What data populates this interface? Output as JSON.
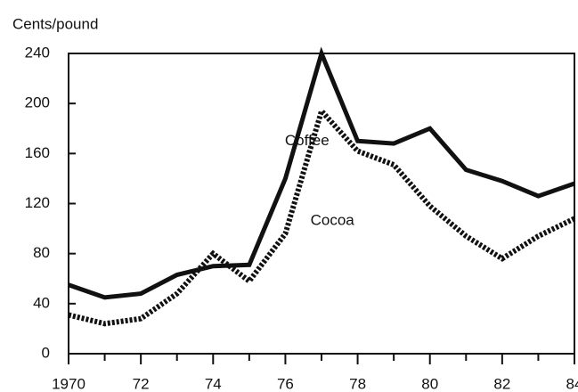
{
  "chart_data": {
    "type": "line",
    "y_axis_label": "Cents/pound",
    "x": [
      1970,
      1971,
      1972,
      1973,
      1974,
      1975,
      1976,
      1977,
      1978,
      1979,
      1980,
      1981,
      1982,
      1983,
      1984
    ],
    "series": [
      {
        "name": "Coffee",
        "color": "#111111",
        "style": "solid",
        "values": [
          55,
          45,
          48,
          63,
          70,
          71,
          140,
          240,
          170,
          168,
          180,
          147,
          138,
          126,
          136
        ]
      },
      {
        "name": "Cocoa",
        "color": "#111111",
        "style": "dotted",
        "values": [
          31,
          24,
          28,
          48,
          80,
          58,
          96,
          194,
          162,
          151,
          118,
          94,
          76,
          94,
          108
        ]
      }
    ],
    "xlim": [
      1970,
      1984
    ],
    "xticks": [
      {
        "value": 1970,
        "label": "1970"
      },
      {
        "value": 1972,
        "label": "72"
      },
      {
        "value": 1974,
        "label": "74"
      },
      {
        "value": 1976,
        "label": "76"
      },
      {
        "value": 1978,
        "label": "78"
      },
      {
        "value": 1980,
        "label": "80"
      },
      {
        "value": 1982,
        "label": "82"
      },
      {
        "value": 1984,
        "label": "84"
      }
    ],
    "xminorticks": [
      1971,
      1973,
      1975,
      1977,
      1979,
      1981,
      1983
    ],
    "ylim": [
      0,
      240
    ],
    "yticks": [
      0,
      40,
      80,
      120,
      160,
      200,
      240
    ],
    "grid": false
  }
}
